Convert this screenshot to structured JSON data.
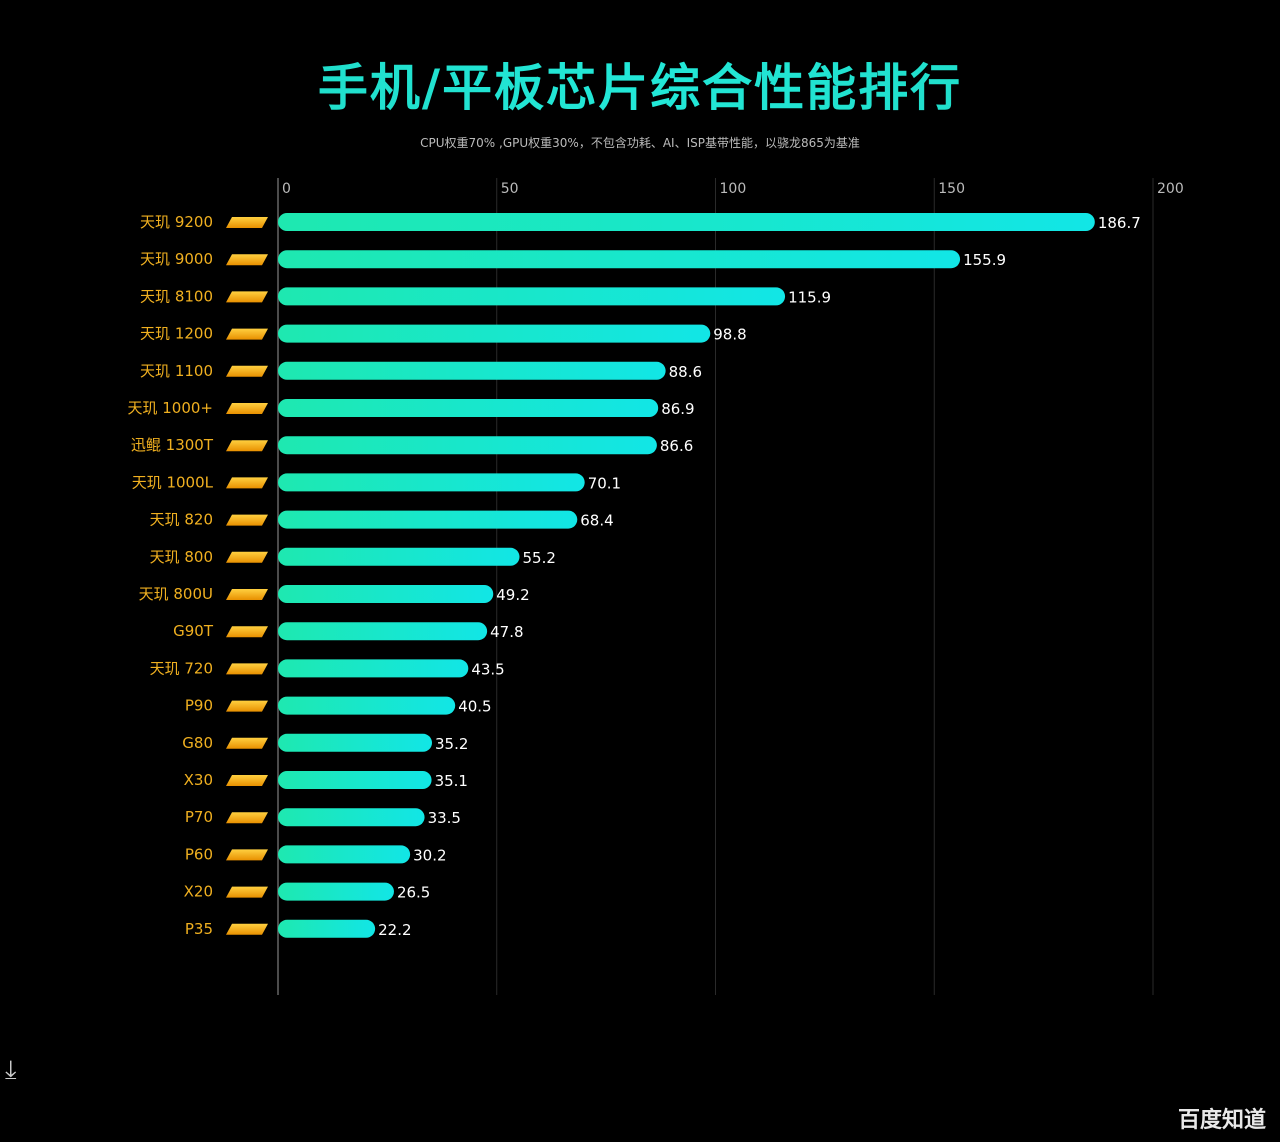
{
  "chart_data": {
    "type": "bar",
    "orientation": "horizontal",
    "title": "手机/平板芯片综合性能排行",
    "subtitle": "CPU权重70% ,GPU权重30%，不包含功耗、AI、ISP基带性能，以骁龙865为基准",
    "categories": [
      "天玑 9200",
      "天玑 9000",
      "天玑 8100",
      "天玑 1200",
      "天玑 1100",
      "天玑 1000+",
      "迅鲲 1300T",
      "天玑 1000L",
      "天玑 820",
      "天玑 800",
      "天玑 800U",
      "G90T",
      "天玑 720",
      "P90",
      "G80",
      "X30",
      "P70",
      "P60",
      "X20",
      "P35"
    ],
    "values": [
      186.7,
      155.9,
      115.9,
      98.8,
      88.6,
      86.9,
      86.6,
      70.1,
      68.4,
      55.2,
      49.2,
      47.8,
      43.5,
      40.5,
      35.2,
      35.1,
      33.5,
      30.2,
      26.5,
      22.2
    ],
    "xlim": [
      0,
      200
    ],
    "xticks": [
      "0",
      "50",
      "100",
      "150",
      "200"
    ],
    "grid": true,
    "colors": {
      "bar_start": "#1ee8b0",
      "bar_end": "#12e6e6",
      "label": "#f0b020",
      "badge": "#f5a800"
    }
  },
  "watermark": "百度知道",
  "icons": {
    "download": "download-icon"
  }
}
